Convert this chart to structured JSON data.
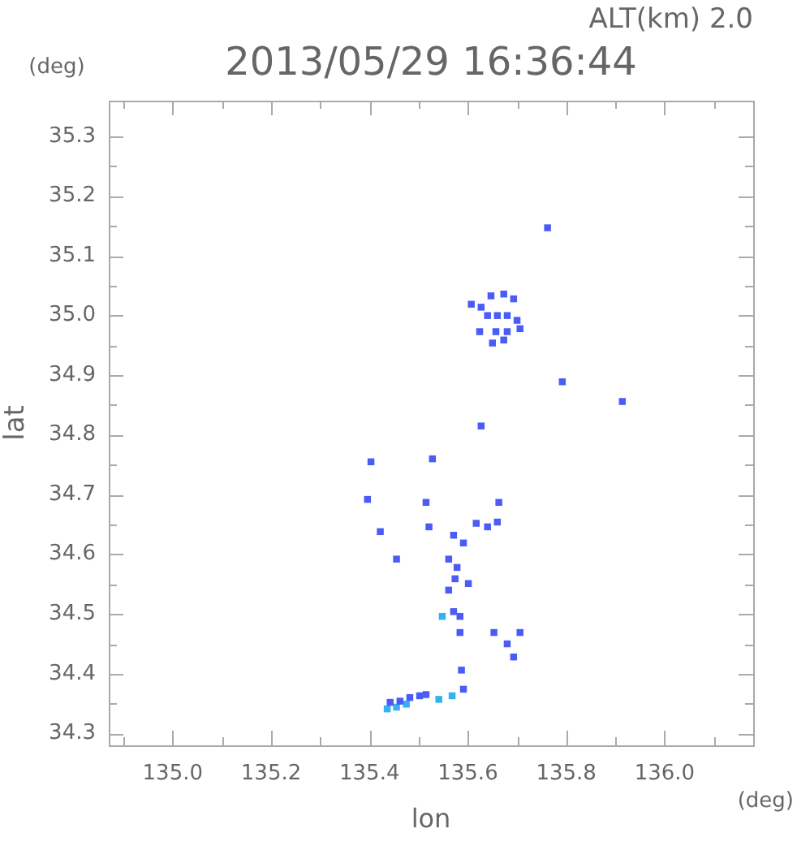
{
  "chart_data": {
    "type": "scatter",
    "title": "2013/05/29 16:36:44",
    "subtitle": "ALT(km) 2.0",
    "xlabel": "lon",
    "ylabel": "lat",
    "annotations": [
      "(deg)",
      "(deg)"
    ],
    "xlim": [
      134.87,
      136.18
    ],
    "xticks": [
      {
        "value": 134.9,
        "label": null
      },
      {
        "value": 135.0,
        "label": "135.0"
      },
      {
        "value": 135.1,
        "label": null
      },
      {
        "value": 135.2,
        "label": "135.2"
      },
      {
        "value": 135.3,
        "label": null
      },
      {
        "value": 135.4,
        "label": "135.4"
      },
      {
        "value": 135.5,
        "label": null
      },
      {
        "value": 135.6,
        "label": "135.6"
      },
      {
        "value": 135.7,
        "label": null
      },
      {
        "value": 135.8,
        "label": "135.8"
      },
      {
        "value": 135.9,
        "label": null
      },
      {
        "value": 136.0,
        "label": "136.0"
      },
      {
        "value": 136.1,
        "label": null
      }
    ],
    "ylim": [
      34.28,
      35.36
    ],
    "yticks": [
      34.3,
      {
        "value": 34.35,
        "label": null
      },
      34.4,
      {
        "value": 34.45,
        "label": null
      },
      34.5,
      {
        "value": 34.55,
        "label": null
      },
      34.6,
      {
        "value": 34.65,
        "label": null
      },
      34.7,
      {
        "value": 34.75,
        "label": null
      },
      34.8,
      {
        "value": 34.85,
        "label": null
      },
      34.9,
      {
        "value": 34.95,
        "label": null
      },
      {
        "value": 35.0,
        "label": "35.0"
      },
      {
        "value": 35.05,
        "label": null
      },
      35.1,
      {
        "value": 35.15,
        "label": null
      },
      35.2,
      {
        "value": 35.25,
        "label": null
      },
      35.3
    ],
    "grid": false,
    "marker": "square",
    "legend": false,
    "series": [
      {
        "color": "#4a5cf5",
        "x": [
          135.627,
          135.647,
          135.673,
          135.693,
          135.64,
          135.66,
          135.68,
          135.7,
          135.624,
          135.657,
          135.68,
          135.706,
          135.65,
          135.673,
          135.607,
          135.762,
          135.792,
          135.914,
          135.627,
          135.403,
          135.528,
          135.396,
          135.515,
          135.663,
          135.66,
          135.64,
          135.617,
          135.521,
          135.422,
          135.571,
          135.455,
          135.591,
          135.561,
          135.578,
          135.574,
          135.601,
          135.561,
          135.571,
          135.584,
          135.584,
          135.653,
          135.706,
          135.68,
          135.693,
          135.587,
          135.591,
          135.442,
          135.462,
          135.482,
          135.502,
          135.515
        ],
        "values": [
          35.014,
          35.033,
          35.036,
          35.028,
          35.0,
          35.0,
          35.0,
          34.992,
          34.973,
          34.973,
          34.973,
          34.978,
          34.954,
          34.959,
          35.019,
          35.147,
          34.889,
          34.856,
          34.815,
          34.755,
          34.76,
          34.692,
          34.687,
          34.687,
          34.654,
          34.646,
          34.652,
          34.646,
          34.638,
          34.632,
          34.592,
          34.619,
          34.592,
          34.578,
          34.559,
          34.551,
          34.54,
          34.504,
          34.496,
          34.469,
          34.469,
          34.469,
          34.45,
          34.428,
          34.406,
          34.374,
          34.352,
          34.354,
          34.36,
          34.363,
          34.365
        ]
      },
      {
        "color": "#35b0f0",
        "x": [
          135.436,
          135.455,
          135.475,
          135.541,
          135.568,
          135.548
        ],
        "values": [
          34.341,
          34.344,
          34.349,
          34.357,
          34.363,
          34.496
        ]
      }
    ]
  }
}
